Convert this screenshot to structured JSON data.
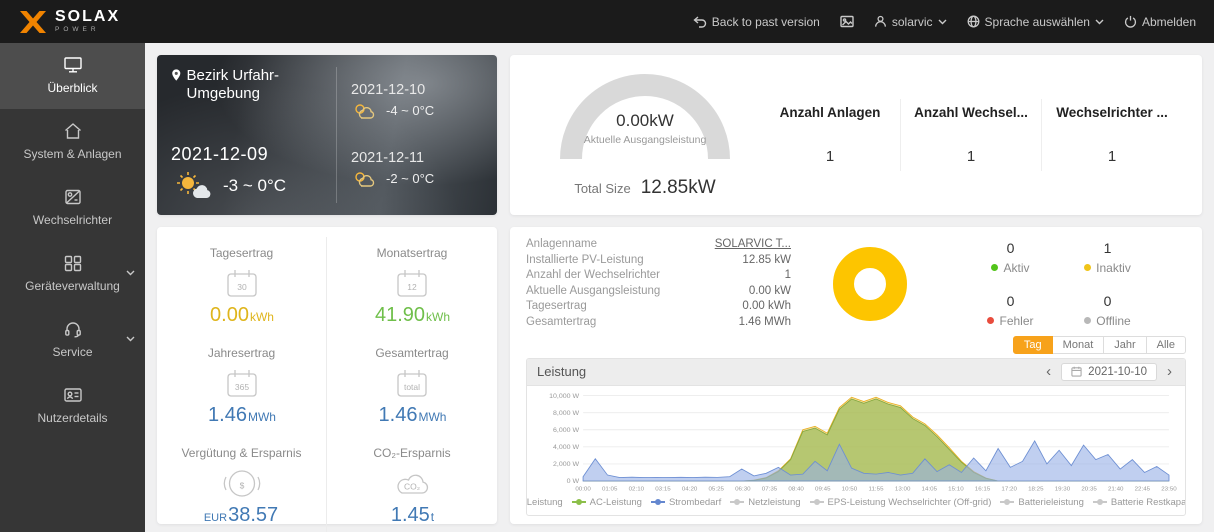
{
  "colors": {
    "accent": "#f7a21b",
    "donut": "#fdc500"
  },
  "topbar": {
    "brand": "SOLAX",
    "brand_sub": "POWER",
    "back_link": "Back to past version",
    "user": "solarvic",
    "language": "Sprache auswählen",
    "logout": "Abmelden"
  },
  "sidebar": {
    "items": [
      {
        "label": "Überblick"
      },
      {
        "label": "System & Anlagen"
      },
      {
        "label": "Wechselrichter"
      },
      {
        "label": "Geräteverwaltung"
      },
      {
        "label": "Service"
      },
      {
        "label": "Nutzerdetails"
      }
    ]
  },
  "weather": {
    "location": "Bezirk Urfahr-Umgebung",
    "today": {
      "date": "2021-12-09",
      "temp": "-3 ~ 0°C"
    },
    "forecast": [
      {
        "date": "2021-12-10",
        "temp": "-4 ~ 0°C"
      },
      {
        "date": "2021-12-11",
        "temp": "-2 ~ 0°C"
      }
    ]
  },
  "overview": {
    "gauge_value": "0.00kW",
    "gauge_label": "Aktuelle Ausgangsleistung",
    "total_size_label": "Total Size",
    "total_size_value": "12.85kW",
    "counts": [
      {
        "label": "Anzahl Anlagen",
        "value": "1"
      },
      {
        "label": "Anzahl Wechsel...",
        "value": "1"
      },
      {
        "label": "Wechselrichter ...",
        "value": "1"
      }
    ]
  },
  "stats": [
    {
      "title": "Tagesertrag",
      "icon_text": "30",
      "prefix": "",
      "value": "0.00",
      "unit": "kWh",
      "color": "#dfb51c"
    },
    {
      "title": "Monatsertrag",
      "icon_text": "12",
      "prefix": "",
      "value": "41.90",
      "unit": "kWh",
      "color": "#6fbf4a"
    },
    {
      "title": "Jahresertrag",
      "icon_text": "365",
      "prefix": "",
      "value": "1.46",
      "unit": "MWh",
      "color": "#4179b4"
    },
    {
      "title": "Gesamtertrag",
      "icon_text": "total",
      "prefix": "",
      "value": "1.46",
      "unit": "MWh",
      "color": "#4179b4"
    },
    {
      "title": "Vergütung & Ersparnis",
      "icon_text": "$",
      "prefix": "EUR",
      "value": "38.57",
      "unit": "",
      "color": "#4179b4"
    },
    {
      "title": "CO₂-Ersparnis",
      "icon_text": "CO₂",
      "prefix": "",
      "value": "1.45",
      "unit": "t",
      "color": "#4179b4"
    }
  ],
  "details": {
    "info": [
      {
        "label": "Anlagenname",
        "value": "SOLARVIC T..."
      },
      {
        "label": "Installierte PV-Leistung",
        "value": "12.85 kW"
      },
      {
        "label": "Anzahl der Wechselrichter",
        "value": "1"
      },
      {
        "label": "Aktuelle Ausgangsleistung",
        "value": "0.00 kW"
      },
      {
        "label": "Tagesertrag",
        "value": "0.00 kWh"
      },
      {
        "label": "Gesamtertrag",
        "value": "1.46 MWh"
      }
    ],
    "donut_color": "#fdc500",
    "status": [
      {
        "count": "0",
        "label": "Aktiv",
        "color": "#52c41a"
      },
      {
        "count": "1",
        "label": "Inaktiv",
        "color": "#f0c419"
      },
      {
        "count": "0",
        "label": "Fehler",
        "color": "#e84c3d"
      },
      {
        "count": "0",
        "label": "Offline",
        "color": "#b8b8b8"
      }
    ],
    "tabs": [
      {
        "label": "Tag"
      },
      {
        "label": "Monat"
      },
      {
        "label": "Jahr"
      },
      {
        "label": "Alle"
      }
    ],
    "prev_icon": "‹",
    "next_icon": "›",
    "date_picker": "2021-10-10"
  },
  "chart_data": {
    "type": "area",
    "title": "Leistung",
    "ylabel": "W",
    "ylim": [
      0,
      10000
    ],
    "yticks": [
      "0 W",
      "2,000 W",
      "4,000 W",
      "6,000 W",
      "8,000 W",
      "10,000 W"
    ],
    "xticks": [
      "00:00",
      "01:05",
      "02:10",
      "03:15",
      "04:20",
      "05:25",
      "06:30",
      "07:35",
      "08:40",
      "09:45",
      "10:50",
      "11:55",
      "13:00",
      "14:05",
      "15:10",
      "16:15",
      "17:20",
      "18:25",
      "19:30",
      "20:35",
      "21:40",
      "22:45",
      "23:50"
    ],
    "x_interval_minutes": 30,
    "series": [
      {
        "name": "PV-Leistung",
        "stroke": "#e8b023",
        "fill": "rgba(240,190,60,0.45)",
        "values": [
          0,
          0,
          0,
          0,
          0,
          0,
          0,
          0,
          0,
          0,
          0,
          0,
          0,
          0,
          100,
          400,
          1200,
          2600,
          6000,
          6400,
          5600,
          8600,
          9800,
          9300,
          9800,
          9200,
          8800,
          7500,
          6700,
          5400,
          3900,
          2300,
          1100,
          350,
          0,
          0,
          0,
          0,
          0,
          0,
          0,
          0,
          0,
          0,
          0,
          0,
          0,
          0,
          0
        ]
      },
      {
        "name": "AC-Leistung",
        "stroke": "#85a83e",
        "fill": "rgba(160,190,95,0.75)",
        "values": [
          0,
          0,
          0,
          0,
          0,
          0,
          0,
          0,
          0,
          0,
          0,
          0,
          0,
          0,
          80,
          350,
          1100,
          2500,
          5800,
          6200,
          5400,
          8400,
          9600,
          9100,
          9600,
          9000,
          8600,
          7300,
          6500,
          5200,
          3700,
          2200,
          1000,
          300,
          0,
          0,
          0,
          0,
          0,
          0,
          0,
          0,
          0,
          0,
          0,
          0,
          0,
          0,
          0
        ]
      },
      {
        "name": "Strombedarf",
        "stroke": "#6d8fd3",
        "fill": "rgba(150,175,230,0.6)",
        "values": [
          500,
          2600,
          700,
          400,
          450,
          400,
          420,
          400,
          430,
          400,
          450,
          420,
          500,
          1400,
          600,
          900,
          1600,
          700,
          800,
          2300,
          1200,
          4300,
          1500,
          900,
          800,
          1000,
          700,
          900,
          2600,
          1100,
          1900,
          1000,
          2700,
          1200,
          3800,
          1600,
          2300,
          4700,
          2000,
          3600,
          1800,
          4200,
          2500,
          3100,
          1400,
          2500,
          1000,
          1700,
          700
        ]
      }
    ],
    "legend": [
      {
        "label": "PV-Leistung",
        "color": "#edb41f"
      },
      {
        "label": "AC-Leistung",
        "color": "#8cbf4a"
      },
      {
        "label": "Strombedarf",
        "color": "#6487cf"
      },
      {
        "label": "Netzleistung",
        "color": "#c9c9c9"
      },
      {
        "label": "EPS-Leistung Wechselrichter (Off-grid)",
        "color": "#c9c9c9"
      },
      {
        "label": "Batterieleistung",
        "color": "#c9c9c9"
      },
      {
        "label": "Batterie Restkapazität(%)",
        "color": "#c9c9c9"
      }
    ],
    "legend_position": "bottom",
    "grid": true
  }
}
